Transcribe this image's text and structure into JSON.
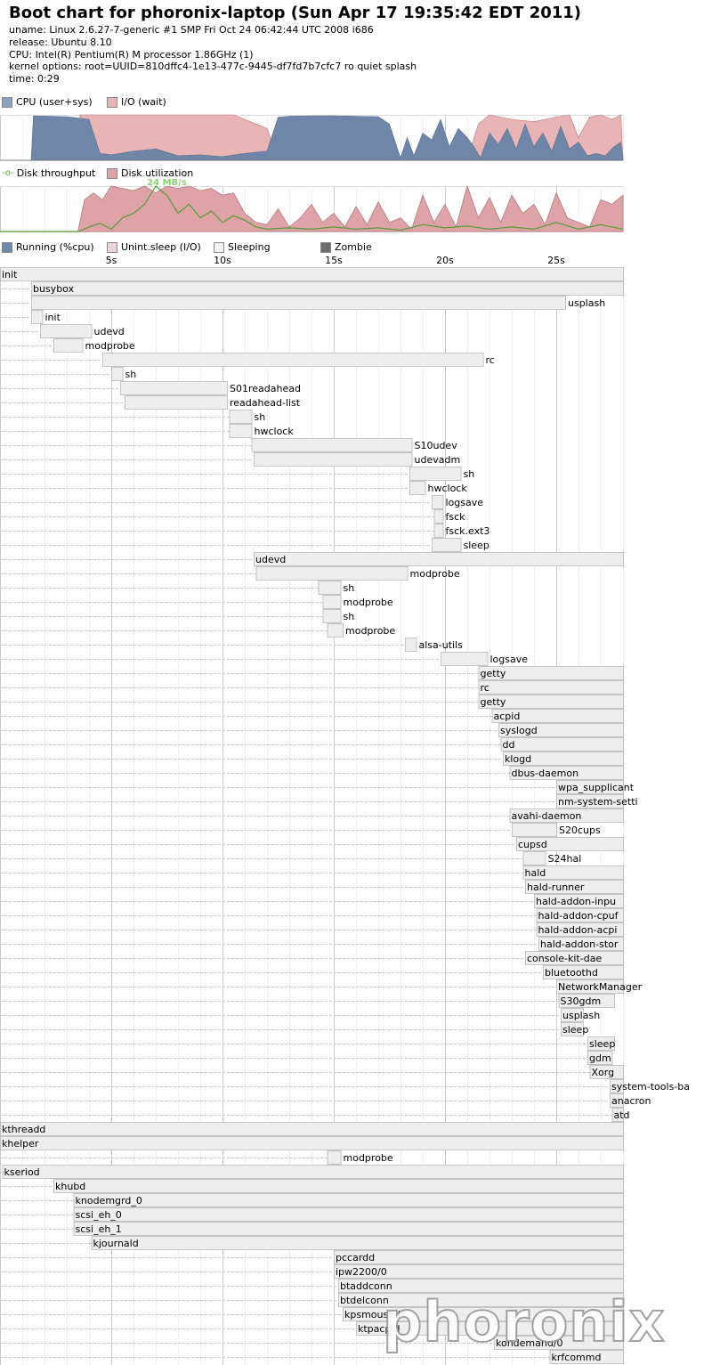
{
  "header": {
    "title": "Boot chart for phoronix-laptop (Sun Apr 17 19:35:42 EDT 2011)",
    "uname": "uname: Linux 2.6.27-7-generic #1 SMP Fri Oct 24 06:42:44 UTC 2008 i686",
    "release": "release: Ubuntu 8.10",
    "cpu": "CPU: Intel(R) Pentium(R) M processor 1.86GHz (1)",
    "kernel": "kernel options: root=UUID=810dffc4-1e13-477c-9445-df7fd7b7cfc7 ro quiet splash",
    "time": "time: 0:29"
  },
  "legend": {
    "cpu": "CPU (user+sys)",
    "io": "I/O (wait)",
    "disk_throughput": "Disk throughput",
    "disk_util": "Disk utilization",
    "running": "Running (%cpu)",
    "unint": "Unint.sleep (I/O)",
    "sleeping": "Sleeping",
    "zombie": "Zombie"
  },
  "colors": {
    "cpu": "#6f86a8",
    "io": "#e8b4b6",
    "disk_line": "#5a9a3a",
    "disk_util": "#dea3a6",
    "proc_fill": "#eeeeee",
    "proc_border": "#b8b8b8",
    "zombie": "#6e6e6e",
    "grid": "#dddddd"
  },
  "watermark": "phoronix",
  "chart_data": [
    {
      "type": "area",
      "title": "",
      "series": [
        {
          "name": "CPU (user+sys)",
          "x": [
            0,
            1.4,
            1.5,
            3,
            4,
            4.5,
            5,
            6,
            7,
            8,
            9,
            10,
            11,
            12,
            12.5,
            13,
            14,
            15,
            16,
            17,
            17.5,
            18,
            18.3,
            18.6,
            19,
            19.4,
            19.8,
            20.2,
            20.6,
            21,
            21.3,
            21.6,
            22,
            22.4,
            22.8,
            23.2,
            23.6,
            24,
            24.4,
            24.8,
            25.2,
            25.6,
            26,
            26.4,
            26.8,
            27.2,
            27.6,
            27.9,
            28
          ],
          "values": [
            0,
            0,
            98,
            96,
            90,
            15,
            12,
            20,
            25,
            10,
            12,
            8,
            15,
            20,
            95,
            97,
            98,
            98,
            97,
            96,
            80,
            5,
            50,
            10,
            60,
            45,
            90,
            30,
            70,
            50,
            30,
            5,
            60,
            35,
            70,
            25,
            80,
            30,
            60,
            20,
            75,
            25,
            40,
            10,
            15,
            10,
            30,
            40,
            0
          ]
        },
        {
          "name": "I/O (wait)",
          "x": [
            0,
            3.5,
            3.6,
            5,
            6,
            7,
            8,
            9,
            10,
            10.5,
            11,
            11.5,
            12,
            12.5,
            21,
            21.5,
            22,
            23,
            24,
            25,
            25.6,
            26,
            26.5,
            27,
            27.5,
            27.9,
            28
          ],
          "values": [
            0,
            0,
            100,
            100,
            100,
            100,
            100,
            100,
            100,
            100,
            90,
            80,
            70,
            0,
            0,
            80,
            100,
            90,
            85,
            95,
            100,
            50,
            95,
            100,
            90,
            100,
            0
          ]
        }
      ],
      "xlim": [
        0,
        28
      ],
      "ylim": [
        0,
        100
      ]
    },
    {
      "type": "area",
      "title": "",
      "annotation": "24 MB/s",
      "series": [
        {
          "name": "Disk utilization",
          "x": [
            0,
            3.5,
            3.8,
            4.2,
            4.6,
            5,
            5.5,
            6,
            6.5,
            7,
            7.5,
            8,
            8.5,
            9,
            9.5,
            10,
            10.5,
            11,
            11.5,
            12,
            12.5,
            13,
            13.5,
            14,
            14.5,
            15,
            15.5,
            16,
            16.5,
            17,
            17.5,
            18,
            18.5,
            19,
            19.5,
            20,
            20.5,
            21,
            21.5,
            22,
            22.5,
            23,
            23.5,
            24,
            24.5,
            25,
            25.5,
            26,
            26.5,
            27,
            27.5,
            28
          ],
          "values": [
            0,
            0,
            70,
            85,
            70,
            100,
            95,
            90,
            100,
            85,
            100,
            95,
            100,
            90,
            95,
            80,
            85,
            40,
            20,
            15,
            50,
            10,
            30,
            60,
            20,
            40,
            10,
            55,
            15,
            65,
            20,
            30,
            5,
            80,
            20,
            60,
            10,
            100,
            30,
            75,
            20,
            80,
            40,
            60,
            15,
            85,
            30,
            20,
            10,
            70,
            60,
            80
          ]
        },
        {
          "name": "Disk throughput",
          "x": [
            0,
            3.5,
            4,
            4.5,
            5,
            5.5,
            6,
            6.5,
            7,
            7.5,
            8,
            8.5,
            9,
            9.5,
            10,
            10.5,
            11,
            11.5,
            12,
            13,
            14,
            15,
            16,
            17,
            18,
            19,
            20,
            21,
            22,
            23,
            24,
            25,
            26,
            27,
            28
          ],
          "values": [
            0,
            0,
            10,
            18,
            5,
            30,
            40,
            60,
            100,
            80,
            40,
            60,
            30,
            45,
            20,
            35,
            25,
            10,
            5,
            8,
            5,
            10,
            5,
            8,
            3,
            15,
            8,
            12,
            5,
            10,
            5,
            20,
            5,
            15,
            5
          ]
        }
      ],
      "xlim": [
        0,
        28
      ]
    },
    {
      "type": "gantt",
      "xlabel": "",
      "ticks": [
        "5s",
        "10s",
        "15s",
        "20s",
        "25s"
      ],
      "processes": [
        {
          "name": "init",
          "start": 0,
          "end": 28
        },
        {
          "name": "busybox",
          "start": 1.4,
          "end": 28
        },
        {
          "name": "usplash",
          "start": 1.4,
          "end": 25.4
        },
        {
          "name": "init",
          "start": 1.4,
          "end": 1.9
        },
        {
          "name": "udevd",
          "start": 1.8,
          "end": 4.1
        },
        {
          "name": "modprobe",
          "start": 2.4,
          "end": 3.7
        },
        {
          "name": "rc",
          "start": 4.6,
          "end": 21.7
        },
        {
          "name": "sh",
          "start": 5,
          "end": 5.5
        },
        {
          "name": "S01readahead",
          "start": 5.4,
          "end": 10.2
        },
        {
          "name": "readahead-list",
          "start": 5.6,
          "end": 10.2
        },
        {
          "name": "sh",
          "start": 10.3,
          "end": 11.3
        },
        {
          "name": "hwclock",
          "start": 10.3,
          "end": 11.3
        },
        {
          "name": "S10udev",
          "start": 11.3,
          "end": 18.5
        },
        {
          "name": "udevadm",
          "start": 11.4,
          "end": 18.5
        },
        {
          "name": "sh",
          "start": 18.4,
          "end": 20.7
        },
        {
          "name": "hwclock",
          "start": 18.4,
          "end": 19.1
        },
        {
          "name": "logsave",
          "start": 19.4,
          "end": 19.9
        },
        {
          "name": "fsck",
          "start": 19.5,
          "end": 19.9
        },
        {
          "name": "fsck.ext3",
          "start": 19.5,
          "end": 19.9
        },
        {
          "name": "sleep",
          "start": 19.4,
          "end": 20.7
        },
        {
          "name": "udevd",
          "start": 11.4,
          "end": 28
        },
        {
          "name": "modprobe",
          "start": 11.5,
          "end": 18.3
        },
        {
          "name": "sh",
          "start": 14.3,
          "end": 15.3
        },
        {
          "name": "modprobe",
          "start": 14.5,
          "end": 15.3
        },
        {
          "name": "sh",
          "start": 14.5,
          "end": 15.3
        },
        {
          "name": "modprobe",
          "start": 14.7,
          "end": 15.4
        },
        {
          "name": "alsa-utils",
          "start": 18.2,
          "end": 18.7
        },
        {
          "name": "logsave",
          "start": 19.8,
          "end": 21.9
        },
        {
          "name": "getty",
          "start": 21.5,
          "end": 28
        },
        {
          "name": "rc",
          "start": 21.5,
          "end": 28
        },
        {
          "name": "getty",
          "start": 21.5,
          "end": 28
        },
        {
          "name": "acpid",
          "start": 22.1,
          "end": 28
        },
        {
          "name": "syslogd",
          "start": 22.4,
          "end": 28
        },
        {
          "name": "dd",
          "start": 22.5,
          "end": 28
        },
        {
          "name": "klogd",
          "start": 22.6,
          "end": 28
        },
        {
          "name": "dbus-daemon",
          "start": 22.9,
          "end": 28
        },
        {
          "name": "wpa_supplicant",
          "start": 25,
          "end": 28
        },
        {
          "name": "nm-system-setti",
          "start": 25,
          "end": 28
        },
        {
          "name": "avahi-daemon",
          "start": 22.9,
          "end": 28
        },
        {
          "name": "S20cups",
          "start": 23,
          "end": 25
        },
        {
          "name": "cupsd",
          "start": 23.2,
          "end": 28
        },
        {
          "name": "S24hal",
          "start": 23.5,
          "end": 24.5
        },
        {
          "name": "hald",
          "start": 23.5,
          "end": 28
        },
        {
          "name": "hald-runner",
          "start": 23.6,
          "end": 28
        },
        {
          "name": "hald-addon-inpu",
          "start": 24,
          "end": 28
        },
        {
          "name": "hald-addon-cpuf",
          "start": 24.1,
          "end": 28
        },
        {
          "name": "hald-addon-acpi",
          "start": 24.1,
          "end": 28
        },
        {
          "name": "hald-addon-stor",
          "start": 24.2,
          "end": 28
        },
        {
          "name": "console-kit-dae",
          "start": 23.6,
          "end": 28
        },
        {
          "name": "bluetoothd",
          "start": 24.4,
          "end": 28
        },
        {
          "name": "NetworkManager",
          "start": 25,
          "end": 28
        },
        {
          "name": "S30gdm",
          "start": 25.1,
          "end": 27.6
        },
        {
          "name": "usplash",
          "start": 25.2,
          "end": 26.2
        },
        {
          "name": "sleep",
          "start": 25.2,
          "end": 26.2
        },
        {
          "name": "sleep",
          "start": 26.4,
          "end": 27.6
        },
        {
          "name": "gdm",
          "start": 26.4,
          "end": 27.5
        },
        {
          "name": "Xorg",
          "start": 26.5,
          "end": 28
        },
        {
          "name": "system-tools-ba",
          "start": 27.4,
          "end": 28
        },
        {
          "name": "anacron",
          "start": 27.4,
          "end": 28
        },
        {
          "name": "atd",
          "start": 27.5,
          "end": 28
        },
        {
          "name": "kthreadd",
          "start": 0,
          "end": 28
        },
        {
          "name": "khelper",
          "start": 0,
          "end": 28
        },
        {
          "name": "modprobe",
          "start": 14.7,
          "end": 15.3
        },
        {
          "name": "kseriod",
          "start": 0.1,
          "end": 28
        },
        {
          "name": "khubd",
          "start": 2.4,
          "end": 28
        },
        {
          "name": "knodemgrd_0",
          "start": 3.3,
          "end": 28
        },
        {
          "name": "scsi_eh_0",
          "start": 3.3,
          "end": 28
        },
        {
          "name": "scsi_eh_1",
          "start": 3.3,
          "end": 28
        },
        {
          "name": "kjournald",
          "start": 4.1,
          "end": 28
        },
        {
          "name": "pccardd",
          "start": 15,
          "end": 28
        },
        {
          "name": "ipw2200/0",
          "start": 15,
          "end": 28
        },
        {
          "name": "btaddconn",
          "start": 15.2,
          "end": 28
        },
        {
          "name": "btdelconn",
          "start": 15.2,
          "end": 28
        },
        {
          "name": "kpsmoused",
          "start": 15.4,
          "end": 28
        },
        {
          "name": "ktpacpid",
          "start": 16,
          "end": 28
        },
        {
          "name": "kondemand/0",
          "start": 22.2,
          "end": 28
        },
        {
          "name": "krfcommd",
          "start": 24.7,
          "end": 28
        }
      ]
    }
  ]
}
